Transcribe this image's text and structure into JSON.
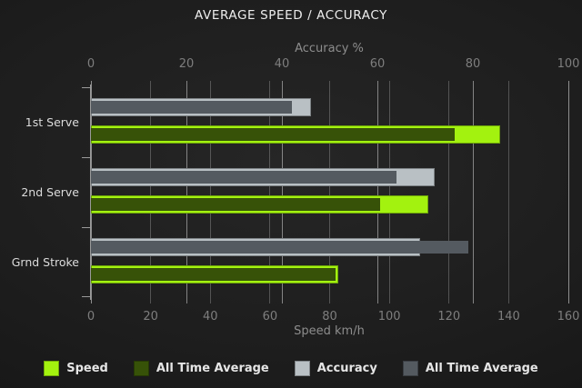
{
  "title": "AVERAGE SPEED / ACCURACY",
  "chart_data": {
    "type": "bar",
    "orientation": "horizontal",
    "grid": true,
    "legend_position": "bottom",
    "categories": [
      "1st Serve",
      "2nd Serve",
      "Grnd Stroke"
    ],
    "axes": {
      "top": {
        "label": "Accuracy %",
        "min": 0,
        "max": 100,
        "ticks": [
          0,
          20,
          40,
          60,
          80,
          100
        ]
      },
      "bottom": {
        "label": "Speed km/h",
        "min": 0,
        "max": 160,
        "ticks": [
          0,
          20,
          40,
          60,
          80,
          100,
          120,
          140,
          160
        ]
      }
    },
    "series": [
      {
        "name": "Speed",
        "axis": "bottom",
        "color": "#a3f20f",
        "values": [
          137,
          113,
          83
        ]
      },
      {
        "name": "All Time Average",
        "axis": "bottom",
        "color": "#375208",
        "values": [
          122,
          97,
          82
        ]
      },
      {
        "name": "Accuracy",
        "axis": "top",
        "color": "#b9c0c4",
        "values": [
          46,
          72,
          69
        ]
      },
      {
        "name": "All Time Average",
        "axis": "top",
        "color": "#545a60",
        "values": [
          42,
          64,
          79
        ]
      }
    ],
    "colors": {
      "background": "#1c1c1c",
      "gridline": "#909090",
      "axis_line": "#9a9a9a",
      "tick_text": "#7e7e7e",
      "category_text": "#dcdcdc",
      "title_text": "#ededed",
      "legend_text": "#e6e6e6"
    }
  }
}
